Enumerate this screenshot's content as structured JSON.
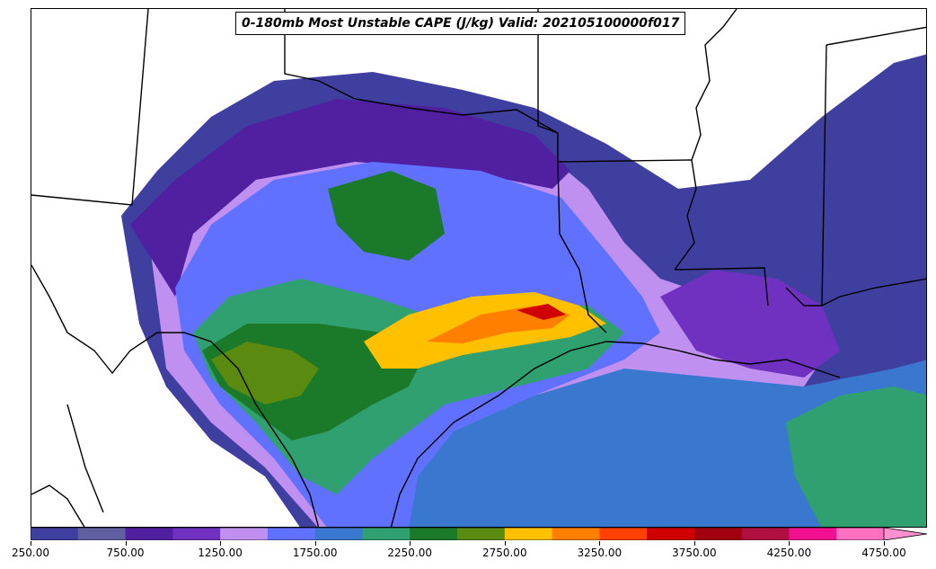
{
  "title": "0-180mb Most Unstable CAPE (J/kg) Valid: 202105100000f017",
  "colorbar": {
    "colors": [
      "#3f3f9f",
      "#6060a0",
      "#5020a0",
      "#7030c0",
      "#c090f0",
      "#6070ff",
      "#3a78d0",
      "#30a070",
      "#1a7a2a",
      "#5a8a10",
      "#ffc000",
      "#ff8000",
      "#ff4000",
      "#d00000",
      "#a00010",
      "#b01040",
      "#f01090",
      "#ff70c0"
    ],
    "extend_color": "#ff90d0",
    "ticks": [
      "250.00",
      "750.00",
      "1250.00",
      "1750.00",
      "2250.00",
      "2750.00",
      "3250.00",
      "3750.00",
      "4250.00",
      "4750.00"
    ]
  }
}
